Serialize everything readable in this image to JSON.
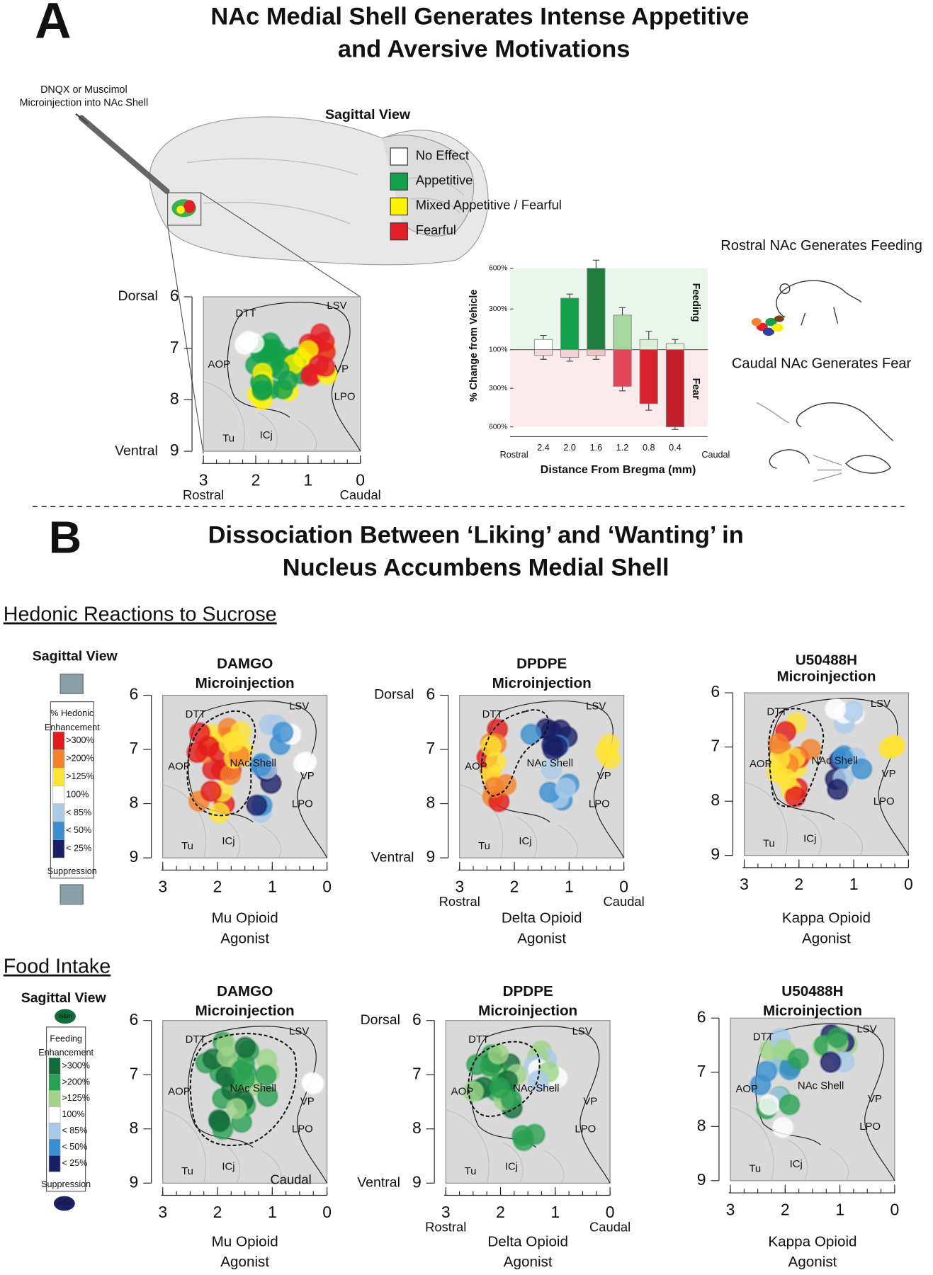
{
  "panel_a": {
    "letter": "A",
    "title_lines": [
      "NAc Medial Shell Generates Intense Appetitive",
      "and Aversive Motivations"
    ],
    "injection_lines": [
      "DNQX or Muscimol",
      "Microinjection into NAc Shell"
    ],
    "view_label": "Sagittal View",
    "legend": [
      {
        "label": "No Effect",
        "color": "#ffffff"
      },
      {
        "label": "Appetitive",
        "color": "#12a04b"
      },
      {
        "label": "Mixed Appetitive / Fearful",
        "color": "#fff200"
      },
      {
        "label": "Fearful",
        "color": "#e31e26"
      }
    ],
    "map": {
      "yticks": [
        6,
        7,
        8,
        9
      ],
      "xticks": [
        3,
        2,
        1,
        0
      ],
      "dorsal": "Dorsal",
      "ventral": "Ventral",
      "rostral": "Rostral",
      "caudal": "Caudal",
      "regions": [
        "DTT",
        "LSV",
        "AOP",
        "VP",
        "LPO",
        "Tu",
        "ICj"
      ]
    },
    "chart": {
      "type": "bar",
      "categories": [
        "2.4",
        "2.0",
        "1.6",
        "1.2",
        "0.8",
        "0.4"
      ],
      "y_label": "% Change from Vehicle",
      "x_label": "Distance From Bregma (mm)",
      "x_start_label": "Rostral",
      "x_end_label": "Caudal",
      "ylim": [
        100,
        600
      ],
      "yticks": [
        {
          "value": 100,
          "label": "100%"
        },
        {
          "value": 300,
          "label": "300%"
        },
        {
          "value": 600,
          "label": "600%"
        }
      ],
      "series": [
        {
          "name": "Feeding",
          "values": [
            150,
            380,
            600,
            270,
            150,
            130
          ],
          "errors": [
            20,
            30,
            60,
            40,
            40,
            20
          ],
          "colors": [
            "#ffffff",
            "#12a04b",
            "#1e7d3f",
            "#a7d79c",
            "#dceed6",
            "#e4f1df"
          ]
        },
        {
          "name": "Fear",
          "values": [
            130,
            140,
            130,
            290,
            420,
            600
          ],
          "errors": [
            20,
            20,
            20,
            30,
            50,
            20
          ],
          "colors": [
            "#f6d6da",
            "#f4d0d4",
            "#f1c4ca",
            "#e2475c",
            "#d7222d",
            "#c21f2c"
          ]
        }
      ]
    },
    "captions": [
      "Rostral NAc Generates Feeding",
      "Caudal NAc Generates Fear"
    ]
  },
  "panel_b": {
    "letter": "B",
    "title_lines": [
      "Dissociation Between ‘Liking’ and ‘Wanting’ in",
      "Nucleus Accumbens Medial Shell"
    ],
    "map_axis": {
      "yticks": [
        6,
        7,
        8,
        9
      ],
      "xticks": [
        3,
        2,
        1,
        0
      ]
    },
    "sections": [
      {
        "heading": "Hedonic Reactions to Sucrose",
        "view_label": "Sagittal View",
        "legend_title_lines": [
          "% Hedonic",
          "Enhancement"
        ],
        "legend_items": [
          {
            "label": ">300%",
            "color": "#e31a1c"
          },
          {
            "label": ">200%",
            "color": "#f4822a"
          },
          {
            "label": ">125%",
            "color": "#ffe433"
          },
          {
            "label": "100%",
            "color": "#ffffff"
          },
          {
            "label": "< 85%",
            "color": "#a9cbe8"
          },
          {
            "label": "< 50%",
            "color": "#3b8fd0"
          },
          {
            "label": "< 25%",
            "color": "#1b1f66"
          }
        ],
        "legend_footer": "Suppression",
        "maps": [
          {
            "drug_lines": [
              "DAMGO",
              "Microinjection"
            ],
            "agonist_lines": [
              "Mu Opioid",
              "Agonist"
            ],
            "regions": [
              "DTT",
              "LSV",
              "AOP",
              "NAc Shell",
              "VP",
              "LPO",
              "Tu",
              "ICj"
            ]
          },
          {
            "drug_lines": [
              "DPDPE",
              "Microinjection"
            ],
            "agonist_lines": [
              "Delta Opioid",
              "Agonist"
            ],
            "regions": [
              "DTT",
              "LSV",
              "AOP",
              "NAc Shell",
              "VP",
              "LPO",
              "Tu",
              "ICj"
            ],
            "side_labels": {
              "dorsal": "Dorsal",
              "ventral": "Ventral",
              "rostral": "Rostral",
              "caudal": "Caudal"
            }
          },
          {
            "drug_lines": [
              "U50488H",
              "Microinjection"
            ],
            "agonist_lines": [
              "Kappa Opioid",
              "Agonist"
            ],
            "regions": [
              "DTT",
              "LSV",
              "AOP",
              "NAc Shell",
              "VP",
              "LPO",
              "Tu",
              "ICj"
            ]
          }
        ]
      },
      {
        "heading": "Food Intake",
        "view_label": "Sagittal View",
        "icon_label": "m&m",
        "legend_title_lines": [
          "Feeding",
          "Enhancement"
        ],
        "legend_items": [
          {
            "label": ">300%",
            "color": "#116b3a"
          },
          {
            "label": ">200%",
            "color": "#2aa052"
          },
          {
            "label": ">125%",
            "color": "#9fd48a"
          },
          {
            "label": "100%",
            "color": "#ffffff"
          },
          {
            "label": "< 85%",
            "color": "#a9cbe8"
          },
          {
            "label": "< 50%",
            "color": "#3b8fd0"
          },
          {
            "label": "< 25%",
            "color": "#1b1f66"
          }
        ],
        "legend_footer": "Suppression",
        "maps": [
          {
            "drug_lines": [
              "DAMGO",
              "Microinjection"
            ],
            "agonist_lines": [
              "Mu Opioid",
              "Agonist"
            ],
            "regions": [
              "DTT",
              "LSV",
              "AOP",
              "NAc Shell",
              "VP",
              "LPO",
              "Tu",
              "ICj"
            ],
            "side_labels": {
              "inner_caudal": "Caudal"
            }
          },
          {
            "drug_lines": [
              "DPDPE",
              "Microinjection"
            ],
            "agonist_lines": [
              "Delta Opioid",
              "Agonist"
            ],
            "regions": [
              "DTT",
              "LSV",
              "AOP",
              "NAc Shell",
              "VP",
              "LPO",
              "Tu",
              "ICj"
            ],
            "side_labels": {
              "dorsal": "Dorsal",
              "ventral": "Ventral",
              "rostral": "Rostral",
              "caudal": "Caudal"
            }
          },
          {
            "drug_lines": [
              "U50488H",
              "Microinjection"
            ],
            "agonist_lines": [
              "Kappa Opioid",
              "Agonist"
            ],
            "regions": [
              "DTT",
              "LSV",
              "AOP",
              "NAc Shell",
              "VP",
              "LPO",
              "Tu",
              "ICj"
            ]
          }
        ]
      }
    ]
  }
}
